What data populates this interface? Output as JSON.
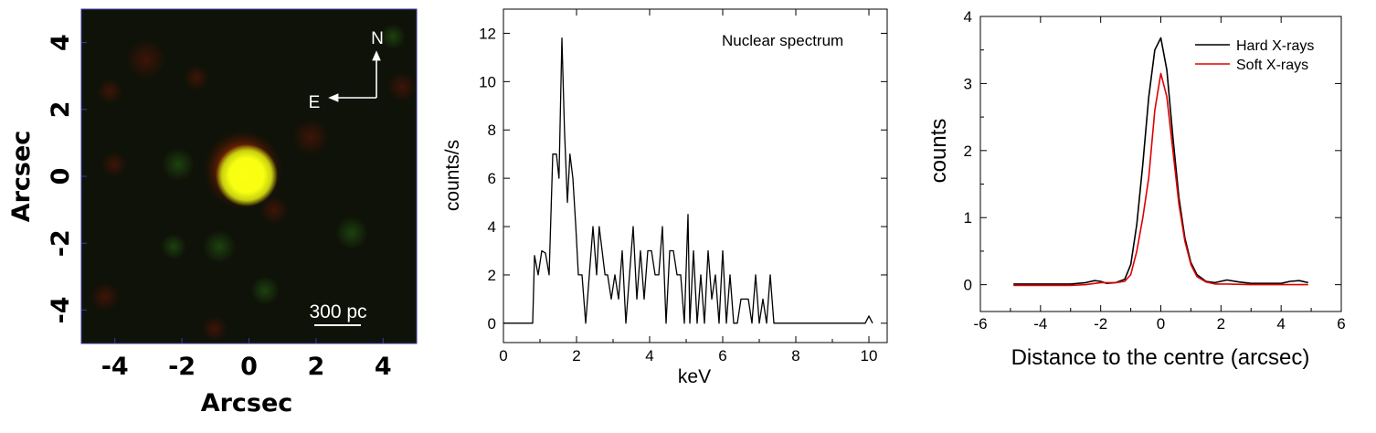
{
  "chart_data": [
    {
      "type": "image",
      "xlabel": "Arcsec",
      "ylabel": "Arcsec",
      "xlim": [
        -5,
        5
      ],
      "ylim": [
        -5,
        5
      ],
      "xticks": [
        "-4",
        "-2",
        "0",
        "2",
        "4"
      ],
      "yticks": [
        "4",
        "2",
        "0",
        "-2",
        "-4"
      ],
      "compass": {
        "north": "N",
        "east": "E"
      },
      "scale_bar": {
        "label": "300 pc",
        "length_arcsec": 1.4
      },
      "colors": {
        "background": "#0f1208",
        "core": "#fcff12",
        "halo": "#e13a00",
        "frame": "#3a3aa0"
      }
    },
    {
      "type": "line",
      "annotation": "Nuclear spectrum",
      "xlabel": "keV",
      "ylabel": "counts/s",
      "xlim": [
        0,
        10.5
      ],
      "ylim": [
        -0.8,
        13
      ],
      "xticks": [
        "0",
        "2",
        "4",
        "6",
        "8",
        "10"
      ],
      "yticks": [
        "0",
        "2",
        "4",
        "6",
        "8",
        "10",
        "12"
      ],
      "series": [
        {
          "color": "#000000",
          "x": [
            0.0,
            0.8,
            0.85,
            0.95,
            1.05,
            1.15,
            1.25,
            1.35,
            1.45,
            1.52,
            1.6,
            1.67,
            1.75,
            1.82,
            1.9,
            1.98,
            2.05,
            2.15,
            2.25,
            2.35,
            2.45,
            2.55,
            2.62,
            2.7,
            2.78,
            2.85,
            2.95,
            3.05,
            3.15,
            3.25,
            3.35,
            3.45,
            3.55,
            3.65,
            3.75,
            3.85,
            3.95,
            4.05,
            4.15,
            4.25,
            4.35,
            4.45,
            4.55,
            4.65,
            4.75,
            4.85,
            4.95,
            5.05,
            5.1,
            5.2,
            5.3,
            5.4,
            5.5,
            5.6,
            5.7,
            5.8,
            5.9,
            6.0,
            6.1,
            6.2,
            6.3,
            6.4,
            6.5,
            6.6,
            6.7,
            6.8,
            6.9,
            7.0,
            7.1,
            7.2,
            7.3,
            7.4,
            7.5,
            9.9,
            10.0,
            10.1
          ],
          "y": [
            0,
            0,
            2.8,
            2.0,
            3.0,
            2.9,
            2.0,
            7.0,
            7.0,
            6.0,
            11.8,
            8.0,
            5.0,
            7.0,
            6.0,
            4.0,
            2.0,
            2.0,
            0.0,
            2.0,
            4.0,
            2.0,
            4.0,
            3.0,
            2.0,
            2.0,
            1.0,
            2.0,
            1.0,
            3.0,
            0.0,
            2.0,
            4.0,
            1.0,
            3.0,
            1.0,
            3.0,
            3.0,
            2.0,
            2.0,
            4.0,
            0.0,
            3.0,
            3.0,
            2.0,
            2.0,
            0.0,
            4.5,
            0.0,
            3.0,
            0.0,
            2.0,
            0.0,
            3.0,
            1.0,
            2.0,
            0.0,
            3.0,
            0.0,
            2.0,
            0.0,
            0.0,
            1.0,
            1.0,
            1.0,
            0.0,
            2.0,
            0.0,
            1.0,
            0.0,
            2.0,
            0.0,
            0.0,
            0.0,
            0.3,
            0.0
          ]
        }
      ]
    },
    {
      "type": "line",
      "xlabel": "Distance to the centre (arcsec)",
      "ylabel": "counts",
      "xlim": [
        -6,
        6
      ],
      "ylim": [
        -0.4,
        4
      ],
      "xticks": [
        "-6",
        "-4",
        "-2",
        "0",
        "2",
        "4",
        "6"
      ],
      "yticks": [
        "0",
        "1",
        "2",
        "3",
        "4"
      ],
      "legend_position": "top-right",
      "series": [
        {
          "name": "Hard X-rays",
          "color": "#000000",
          "x": [
            -4.9,
            -4.5,
            -4.0,
            -3.5,
            -3.0,
            -2.5,
            -2.2,
            -2.0,
            -1.8,
            -1.5,
            -1.2,
            -1.0,
            -0.8,
            -0.6,
            -0.4,
            -0.2,
            0.0,
            0.2,
            0.4,
            0.6,
            0.8,
            1.0,
            1.2,
            1.5,
            1.8,
            2.2,
            2.6,
            3.0,
            3.5,
            4.0,
            4.3,
            4.6,
            4.9
          ],
          "y": [
            0.01,
            0.01,
            0.01,
            0.01,
            0.01,
            0.03,
            0.06,
            0.05,
            0.02,
            0.03,
            0.08,
            0.3,
            0.9,
            1.8,
            2.8,
            3.5,
            3.68,
            3.2,
            2.2,
            1.3,
            0.7,
            0.33,
            0.15,
            0.05,
            0.03,
            0.07,
            0.04,
            0.02,
            0.02,
            0.02,
            0.05,
            0.06,
            0.03
          ]
        },
        {
          "name": "Soft X-rays",
          "color": "#e00000",
          "x": [
            -4.9,
            -4.0,
            -3.0,
            -2.5,
            -2.0,
            -1.5,
            -1.2,
            -1.0,
            -0.8,
            -0.6,
            -0.4,
            -0.2,
            0.0,
            0.2,
            0.4,
            0.6,
            0.8,
            1.0,
            1.2,
            1.5,
            1.8,
            2.2,
            3.0,
            4.0,
            4.9
          ],
          "y": [
            -0.01,
            -0.01,
            -0.01,
            0.0,
            0.03,
            0.03,
            0.05,
            0.15,
            0.5,
            1.0,
            1.6,
            2.6,
            3.15,
            2.8,
            2.0,
            1.2,
            0.65,
            0.3,
            0.12,
            0.04,
            0.01,
            0.01,
            0.0,
            0.0,
            0.0
          ]
        }
      ]
    }
  ]
}
